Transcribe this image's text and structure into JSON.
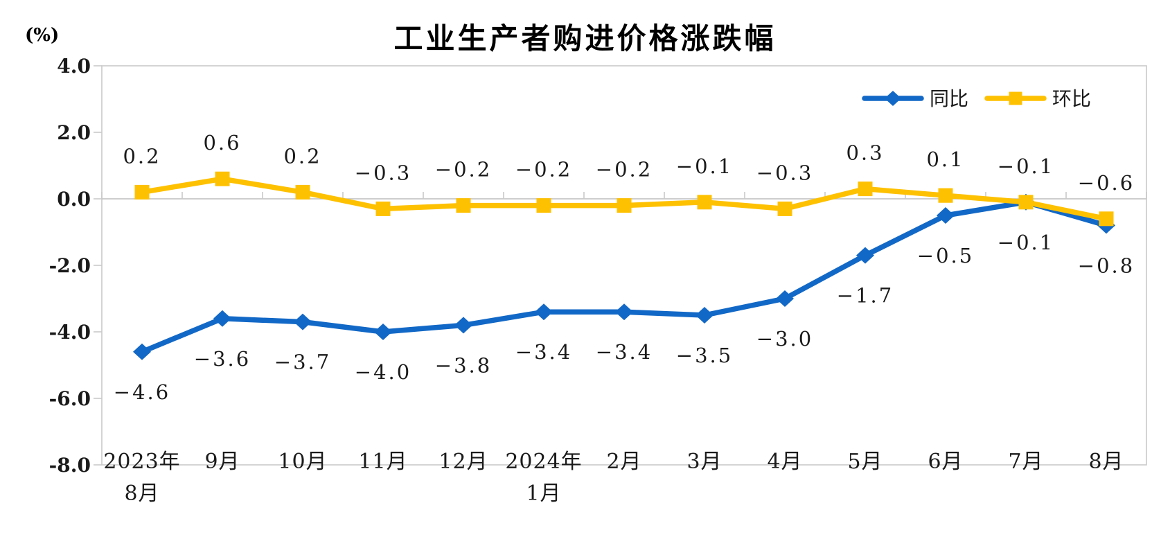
{
  "page": {
    "background": "#FFFFFF"
  },
  "chart_data": {
    "type": "line",
    "title": "工业生产者购进价格涨跌幅",
    "unit_label": "(%)",
    "categories": [
      [
        "2023年",
        "8月"
      ],
      [
        "9月"
      ],
      [
        "10月"
      ],
      [
        "11月"
      ],
      [
        "12月"
      ],
      [
        "2024年",
        "1月"
      ],
      [
        "2月"
      ],
      [
        "3月"
      ],
      [
        "4月"
      ],
      [
        "5月"
      ],
      [
        "6月"
      ],
      [
        "7月"
      ],
      [
        "8月"
      ]
    ],
    "series": [
      {
        "name": "同比",
        "id": "yoy",
        "marker": "diamond",
        "color": "#1268C6",
        "label_position": "below",
        "values": [
          -4.6,
          -3.6,
          -3.7,
          -4.0,
          -3.8,
          -3.4,
          -3.4,
          -3.5,
          -3.0,
          -1.7,
          -0.5,
          -0.1,
          -0.8
        ]
      },
      {
        "name": "环比",
        "id": "mom",
        "marker": "square",
        "color": "#FEC102",
        "label_position": "above",
        "values": [
          0.2,
          0.6,
          0.2,
          -0.3,
          -0.2,
          -0.2,
          -0.2,
          -0.1,
          -0.3,
          0.3,
          0.1,
          -0.1,
          -0.6
        ]
      }
    ],
    "y_ticks": [
      4.0,
      2.0,
      0.0,
      -2.0,
      -4.0,
      -6.0,
      -8.0
    ],
    "ylim": [
      -8.0,
      4.0
    ],
    "xlabel": "",
    "ylabel": "(%)",
    "grid": false,
    "legend_position": "top-right",
    "axis_color": "#C9C9C9",
    "zero_line_color": "#BDBDBD",
    "label_color": "#1A1A1A"
  }
}
